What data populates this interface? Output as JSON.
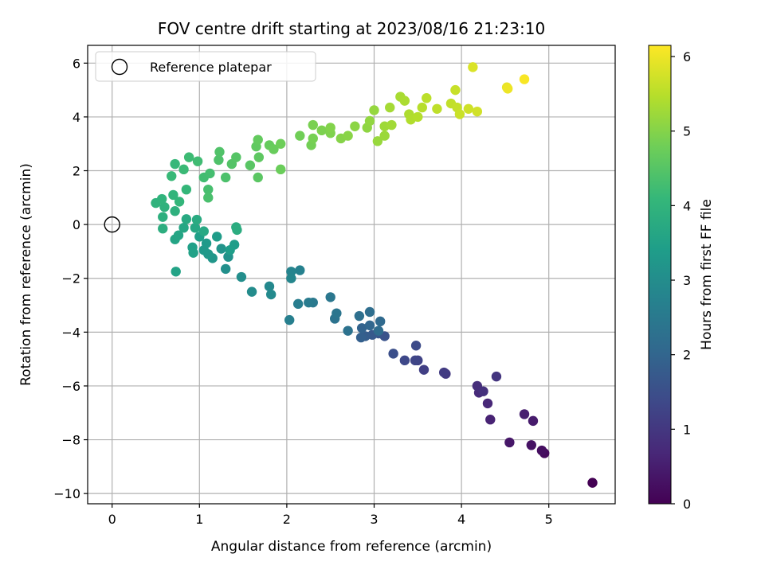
{
  "chart_data": {
    "type": "scatter",
    "title": "FOV centre drift starting at 2023/08/16 21:23:10",
    "xlabel": "Angular distance from reference (arcmin)",
    "ylabel": "Rotation from reference (arcmin)",
    "xlim": [
      -0.28,
      5.76
    ],
    "ylim": [
      -10.38,
      6.66
    ],
    "xticks": [
      0,
      1,
      2,
      3,
      4,
      5
    ],
    "yticks": [
      -10,
      -8,
      -6,
      -4,
      -2,
      0,
      2,
      4,
      6
    ],
    "grid": true,
    "legend": {
      "label": "Reference platepar",
      "position": "top-left",
      "marker": "open-circle"
    },
    "reference_point": {
      "x": 0,
      "y": 0
    },
    "colorbar": {
      "label": "Hours from first FF file",
      "colormap": "viridis",
      "range": [
        0,
        6.15
      ],
      "ticks": [
        0,
        1,
        2,
        3,
        4,
        5,
        6
      ],
      "colors": [
        "#440154",
        "#482878",
        "#3e4989",
        "#31688e",
        "#26828e",
        "#1f9e89",
        "#35b779",
        "#6ece58",
        "#b5de2b",
        "#fde725"
      ]
    },
    "series": [
      {
        "points": [
          {
            "x": 5.5,
            "y": -9.6,
            "t": 0.0
          },
          {
            "x": 4.95,
            "y": -8.5,
            "t": 0.15
          },
          {
            "x": 4.92,
            "y": -8.4,
            "t": 0.22
          },
          {
            "x": 4.8,
            "y": -8.2,
            "t": 0.3
          },
          {
            "x": 4.55,
            "y": -8.1,
            "t": 0.38
          },
          {
            "x": 4.82,
            "y": -7.3,
            "t": 0.45
          },
          {
            "x": 4.72,
            "y": -7.05,
            "t": 0.52
          },
          {
            "x": 4.33,
            "y": -7.25,
            "t": 0.6
          },
          {
            "x": 4.3,
            "y": -6.65,
            "t": 0.68
          },
          {
            "x": 4.2,
            "y": -6.25,
            "t": 0.75
          },
          {
            "x": 4.18,
            "y": -6.0,
            "t": 0.82
          },
          {
            "x": 4.25,
            "y": -6.2,
            "t": 0.88
          },
          {
            "x": 4.4,
            "y": -5.65,
            "t": 0.95
          },
          {
            "x": 3.82,
            "y": -5.55,
            "t": 1.02
          },
          {
            "x": 3.8,
            "y": -5.5,
            "t": 1.08
          },
          {
            "x": 3.57,
            "y": -5.4,
            "t": 1.15
          },
          {
            "x": 3.5,
            "y": -5.05,
            "t": 1.22
          },
          {
            "x": 3.47,
            "y": -5.05,
            "t": 1.28
          },
          {
            "x": 3.35,
            "y": -5.05,
            "t": 1.35
          },
          {
            "x": 3.48,
            "y": -4.5,
            "t": 1.42
          },
          {
            "x": 3.22,
            "y": -4.8,
            "t": 1.5
          },
          {
            "x": 3.12,
            "y": -4.15,
            "t": 1.58
          },
          {
            "x": 3.05,
            "y": -4.05,
            "t": 1.65
          },
          {
            "x": 2.98,
            "y": -4.1,
            "t": 1.72
          },
          {
            "x": 2.9,
            "y": -4.15,
            "t": 1.8
          },
          {
            "x": 2.85,
            "y": -4.2,
            "t": 1.88
          },
          {
            "x": 2.86,
            "y": -3.85,
            "t": 1.95
          },
          {
            "x": 2.95,
            "y": -3.75,
            "t": 2.02
          },
          {
            "x": 3.07,
            "y": -3.6,
            "t": 2.1
          },
          {
            "x": 3.05,
            "y": -3.95,
            "t": 2.15
          },
          {
            "x": 2.95,
            "y": -3.25,
            "t": 2.2
          },
          {
            "x": 2.83,
            "y": -3.4,
            "t": 2.25
          },
          {
            "x": 2.7,
            "y": -3.95,
            "t": 2.3
          },
          {
            "x": 2.55,
            "y": -3.5,
            "t": 2.35
          },
          {
            "x": 2.57,
            "y": -3.3,
            "t": 2.4
          },
          {
            "x": 2.5,
            "y": -2.7,
            "t": 2.45
          },
          {
            "x": 2.3,
            "y": -2.9,
            "t": 2.5
          },
          {
            "x": 2.25,
            "y": -2.9,
            "t": 2.55
          },
          {
            "x": 2.13,
            "y": -2.95,
            "t": 2.6
          },
          {
            "x": 2.03,
            "y": -3.55,
            "t": 2.65
          },
          {
            "x": 2.15,
            "y": -1.7,
            "t": 2.72
          },
          {
            "x": 2.05,
            "y": -1.75,
            "t": 2.78
          },
          {
            "x": 2.05,
            "y": -2.0,
            "t": 2.84
          },
          {
            "x": 1.8,
            "y": -2.3,
            "t": 2.88
          },
          {
            "x": 1.82,
            "y": -2.6,
            "t": 2.92
          },
          {
            "x": 1.6,
            "y": -2.5,
            "t": 2.97
          },
          {
            "x": 1.48,
            "y": -1.95,
            "t": 3.02
          },
          {
            "x": 1.3,
            "y": -1.65,
            "t": 3.07
          },
          {
            "x": 1.33,
            "y": -1.2,
            "t": 3.12
          },
          {
            "x": 1.25,
            "y": -0.9,
            "t": 3.17
          },
          {
            "x": 1.15,
            "y": -1.25,
            "t": 3.22
          },
          {
            "x": 1.1,
            "y": -1.1,
            "t": 3.27
          },
          {
            "x": 1.05,
            "y": -0.95,
            "t": 3.3
          },
          {
            "x": 1.08,
            "y": -0.7,
            "t": 3.33
          },
          {
            "x": 1.2,
            "y": -0.45,
            "t": 3.36
          },
          {
            "x": 1.4,
            "y": -0.75,
            "t": 3.39
          },
          {
            "x": 1.35,
            "y": -0.95,
            "t": 3.42
          },
          {
            "x": 1.0,
            "y": -0.45,
            "t": 3.45
          },
          {
            "x": 0.92,
            "y": -0.85,
            "t": 3.48
          },
          {
            "x": 0.93,
            "y": -1.05,
            "t": 3.51
          },
          {
            "x": 0.73,
            "y": -1.75,
            "t": 3.54
          },
          {
            "x": 0.72,
            "y": -0.55,
            "t": 3.57
          },
          {
            "x": 0.76,
            "y": -0.4,
            "t": 3.6
          },
          {
            "x": 0.82,
            "y": -0.12,
            "t": 3.63
          },
          {
            "x": 0.95,
            "y": -0.12,
            "t": 3.66
          },
          {
            "x": 1.05,
            "y": -0.25,
            "t": 3.69
          },
          {
            "x": 0.85,
            "y": 0.2,
            "t": 3.72
          },
          {
            "x": 0.97,
            "y": 0.18,
            "t": 3.75
          },
          {
            "x": 1.42,
            "y": -0.1,
            "t": 3.78
          },
          {
            "x": 1.43,
            "y": -0.2,
            "t": 3.81
          },
          {
            "x": 0.58,
            "y": -0.15,
            "t": 3.84
          },
          {
            "x": 0.58,
            "y": 0.28,
            "t": 3.87
          },
          {
            "x": 0.72,
            "y": 0.5,
            "t": 3.9
          },
          {
            "x": 0.6,
            "y": 0.65,
            "t": 3.93
          },
          {
            "x": 0.5,
            "y": 0.8,
            "t": 3.96
          },
          {
            "x": 0.57,
            "y": 0.95,
            "t": 3.99
          },
          {
            "x": 0.7,
            "y": 1.1,
            "t": 4.02
          },
          {
            "x": 0.77,
            "y": 0.85,
            "t": 4.05
          },
          {
            "x": 0.85,
            "y": 1.3,
            "t": 4.08
          },
          {
            "x": 0.72,
            "y": 2.25,
            "t": 4.11
          },
          {
            "x": 0.68,
            "y": 1.8,
            "t": 4.14
          },
          {
            "x": 0.82,
            "y": 2.05,
            "t": 4.17
          },
          {
            "x": 0.88,
            "y": 2.5,
            "t": 4.2
          },
          {
            "x": 0.98,
            "y": 2.35,
            "t": 4.23
          },
          {
            "x": 1.05,
            "y": 1.75,
            "t": 4.26
          },
          {
            "x": 1.12,
            "y": 1.9,
            "t": 4.29
          },
          {
            "x": 1.1,
            "y": 1.3,
            "t": 4.32
          },
          {
            "x": 1.1,
            "y": 1.0,
            "t": 4.35
          },
          {
            "x": 1.3,
            "y": 1.75,
            "t": 4.38
          },
          {
            "x": 1.22,
            "y": 2.4,
            "t": 4.41
          },
          {
            "x": 1.23,
            "y": 2.7,
            "t": 4.44
          },
          {
            "x": 1.37,
            "y": 2.25,
            "t": 4.47
          },
          {
            "x": 1.42,
            "y": 2.5,
            "t": 4.5
          },
          {
            "x": 1.58,
            "y": 2.2,
            "t": 4.53
          },
          {
            "x": 1.67,
            "y": 1.75,
            "t": 4.56
          },
          {
            "x": 1.68,
            "y": 2.5,
            "t": 4.59
          },
          {
            "x": 1.65,
            "y": 2.9,
            "t": 4.62
          },
          {
            "x": 1.67,
            "y": 3.15,
            "t": 4.65
          },
          {
            "x": 1.8,
            "y": 2.95,
            "t": 4.68
          },
          {
            "x": 1.85,
            "y": 2.8,
            "t": 4.71
          },
          {
            "x": 1.93,
            "y": 2.05,
            "t": 4.74
          },
          {
            "x": 1.93,
            "y": 3.0,
            "t": 4.77
          },
          {
            "x": 2.15,
            "y": 3.3,
            "t": 4.8
          },
          {
            "x": 2.28,
            "y": 2.95,
            "t": 4.83
          },
          {
            "x": 2.3,
            "y": 3.2,
            "t": 4.86
          },
          {
            "x": 2.3,
            "y": 3.7,
            "t": 4.89
          },
          {
            "x": 2.4,
            "y": 3.5,
            "t": 4.92
          },
          {
            "x": 2.5,
            "y": 3.4,
            "t": 4.95
          },
          {
            "x": 2.5,
            "y": 3.6,
            "t": 4.98
          },
          {
            "x": 2.62,
            "y": 3.2,
            "t": 5.01
          },
          {
            "x": 2.7,
            "y": 3.3,
            "t": 5.04
          },
          {
            "x": 2.78,
            "y": 3.65,
            "t": 5.07
          },
          {
            "x": 2.92,
            "y": 3.6,
            "t": 5.1
          },
          {
            "x": 2.95,
            "y": 3.85,
            "t": 5.13
          },
          {
            "x": 3.0,
            "y": 4.25,
            "t": 5.16
          },
          {
            "x": 3.04,
            "y": 3.1,
            "t": 5.19
          },
          {
            "x": 3.12,
            "y": 3.3,
            "t": 5.22
          },
          {
            "x": 3.12,
            "y": 3.65,
            "t": 5.25
          },
          {
            "x": 3.2,
            "y": 3.7,
            "t": 5.28
          },
          {
            "x": 3.18,
            "y": 4.35,
            "t": 5.31
          },
          {
            "x": 3.3,
            "y": 4.75,
            "t": 5.34
          },
          {
            "x": 3.35,
            "y": 4.6,
            "t": 5.37
          },
          {
            "x": 3.4,
            "y": 4.1,
            "t": 5.4
          },
          {
            "x": 3.42,
            "y": 3.9,
            "t": 5.43
          },
          {
            "x": 3.5,
            "y": 4.0,
            "t": 5.46
          },
          {
            "x": 3.55,
            "y": 4.35,
            "t": 5.49
          },
          {
            "x": 3.6,
            "y": 4.7,
            "t": 5.52
          },
          {
            "x": 3.72,
            "y": 4.3,
            "t": 5.55
          },
          {
            "x": 3.88,
            "y": 4.5,
            "t": 5.58
          },
          {
            "x": 3.95,
            "y": 4.35,
            "t": 5.61
          },
          {
            "x": 3.93,
            "y": 5.0,
            "t": 5.64
          },
          {
            "x": 3.98,
            "y": 4.1,
            "t": 5.67
          },
          {
            "x": 4.08,
            "y": 4.3,
            "t": 5.7
          },
          {
            "x": 4.18,
            "y": 4.2,
            "t": 5.73
          },
          {
            "x": 4.13,
            "y": 5.85,
            "t": 5.82
          },
          {
            "x": 4.52,
            "y": 5.1,
            "t": 5.95
          },
          {
            "x": 4.53,
            "y": 5.05,
            "t": 6.0
          },
          {
            "x": 4.72,
            "y": 5.4,
            "t": 6.1
          }
        ]
      }
    ]
  }
}
